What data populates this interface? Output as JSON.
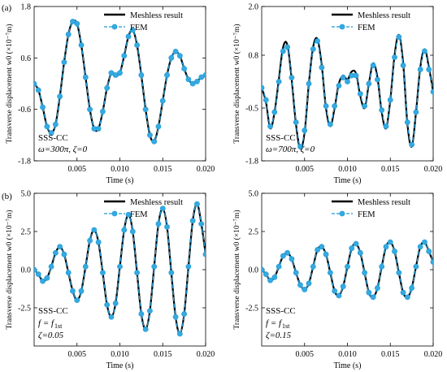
{
  "labels": {
    "row_a": "(a)",
    "row_b": "(b)"
  },
  "colors": {
    "meshless": "#000000",
    "fem": "#1f9bd7",
    "marker_fill": "#35a9e0"
  },
  "chart_data": [
    {
      "type": "line",
      "panel": "top-left",
      "xlabel": "Time (s)",
      "ylabel": "Transverse displacement w0 (×10⁻⁷m)",
      "xlim": [
        0,
        0.02
      ],
      "ylim": [
        -1.8,
        1.8
      ],
      "xticks": [
        0.005,
        0.01,
        0.015,
        0.02
      ],
      "xtick_labels": [
        "0.005",
        "0.010",
        "0.015",
        "0.020"
      ],
      "yticks": [
        -1.8,
        -0.6,
        0.6,
        1.8
      ],
      "ytick_labels": [
        "-1.8",
        "-0.6",
        "0.6",
        "1.8"
      ],
      "legend": {
        "position": "top-right",
        "entries": [
          "Meshless result",
          "FEM"
        ]
      },
      "annotations": [
        "SSS-CC",
        "ω=300π, ζ=0"
      ],
      "series": [
        {
          "name": "Meshless result",
          "style": "solid",
          "x": [
            0,
            0.0005,
            0.001,
            0.0015,
            0.002,
            0.0025,
            0.003,
            0.0035,
            0.004,
            0.0045,
            0.005,
            0.0055,
            0.006,
            0.0065,
            0.007,
            0.0075,
            0.008,
            0.0085,
            0.009,
            0.0095,
            0.01,
            0.0105,
            0.011,
            0.0115,
            0.012,
            0.0125,
            0.013,
            0.0135,
            0.014,
            0.0145,
            0.015,
            0.0155,
            0.016,
            0.0165,
            0.017,
            0.0175,
            0.018,
            0.0185,
            0.019,
            0.0195,
            0.02
          ],
          "y": [
            0.0,
            -0.15,
            -0.55,
            -1.0,
            -1.15,
            -0.95,
            -0.3,
            0.5,
            1.15,
            1.45,
            1.4,
            0.9,
            0.15,
            -0.6,
            -1.05,
            -1.05,
            -0.65,
            -0.1,
            0.25,
            0.2,
            0.25,
            0.65,
            1.1,
            1.25,
            0.9,
            0.2,
            -0.6,
            -1.2,
            -1.35,
            -1.0,
            -0.4,
            0.2,
            0.6,
            0.75,
            0.65,
            0.35,
            0.1,
            0.0,
            0.05,
            0.15,
            0.2
          ]
        },
        {
          "name": "FEM",
          "style": "dashed-markers",
          "x": [
            0,
            0.0005,
            0.001,
            0.0015,
            0.002,
            0.0025,
            0.003,
            0.0035,
            0.004,
            0.0045,
            0.005,
            0.0055,
            0.006,
            0.0065,
            0.007,
            0.0075,
            0.008,
            0.0085,
            0.009,
            0.0095,
            0.01,
            0.0105,
            0.011,
            0.0115,
            0.012,
            0.0125,
            0.013,
            0.0135,
            0.014,
            0.0145,
            0.015,
            0.0155,
            0.016,
            0.0165,
            0.017,
            0.0175,
            0.018,
            0.0185,
            0.019,
            0.0195,
            0.02
          ],
          "y": [
            0.0,
            -0.15,
            -0.55,
            -1.0,
            -1.15,
            -0.95,
            -0.3,
            0.5,
            1.15,
            1.45,
            1.4,
            0.9,
            0.15,
            -0.6,
            -1.05,
            -1.05,
            -0.65,
            -0.1,
            0.25,
            0.2,
            0.25,
            0.65,
            1.1,
            1.25,
            0.9,
            0.2,
            -0.6,
            -1.2,
            -1.35,
            -1.0,
            -0.4,
            0.2,
            0.6,
            0.75,
            0.65,
            0.35,
            0.1,
            0.0,
            0.05,
            0.15,
            0.2
          ]
        }
      ]
    },
    {
      "type": "line",
      "panel": "top-right",
      "xlabel": "Time (s)",
      "ylabel": "Transverse displacement w0 (×10⁻⁷m)",
      "xlim": [
        0,
        0.02
      ],
      "ylim": [
        -1.8,
        2.0
      ],
      "xticks": [
        0.005,
        0.01,
        0.015,
        0.02
      ],
      "xtick_labels": [
        "0.005",
        "0.010",
        "0.015",
        "0.020"
      ],
      "yticks": [
        -1.8,
        -0.5,
        0.8,
        2.0
      ],
      "ytick_labels": [
        "-1.8",
        "-0.5",
        "0.8",
        "2.0"
      ],
      "legend": {
        "position": "top-right",
        "entries": [
          "Meshless result",
          "FEM"
        ]
      },
      "annotations": [
        "SSS-CC",
        "ω=700π, ζ=0"
      ],
      "series": [
        {
          "name": "Meshless result",
          "style": "solid",
          "x": [
            0,
            0.0005,
            0.001,
            0.0015,
            0.002,
            0.0025,
            0.003,
            0.0035,
            0.004,
            0.0045,
            0.005,
            0.0055,
            0.006,
            0.0065,
            0.007,
            0.0075,
            0.008,
            0.0085,
            0.009,
            0.0095,
            0.01,
            0.0105,
            0.011,
            0.0115,
            0.012,
            0.0125,
            0.013,
            0.0135,
            0.014,
            0.0145,
            0.015,
            0.0155,
            0.016,
            0.0165,
            0.017,
            0.0175,
            0.018,
            0.0185,
            0.019,
            0.0195,
            0.02
          ],
          "y": [
            0.0,
            -0.35,
            -1.0,
            -0.6,
            0.2,
            1.0,
            1.05,
            0.2,
            -0.9,
            -1.5,
            -1.1,
            0.1,
            1.0,
            1.2,
            0.55,
            -0.5,
            -0.95,
            -0.5,
            0.1,
            0.3,
            0.2,
            0.4,
            0.35,
            -0.2,
            -0.5,
            0.1,
            0.6,
            0.25,
            -0.6,
            -1.0,
            -0.3,
            0.8,
            1.3,
            0.6,
            -0.9,
            -1.45,
            -0.6,
            0.5,
            0.95,
            0.5,
            -0.1
          ]
        },
        {
          "name": "FEM",
          "style": "dashed-markers",
          "x": [
            0,
            0.0005,
            0.001,
            0.0015,
            0.002,
            0.0025,
            0.003,
            0.0035,
            0.004,
            0.0045,
            0.005,
            0.0055,
            0.006,
            0.0065,
            0.007,
            0.0075,
            0.008,
            0.0085,
            0.009,
            0.0095,
            0.01,
            0.0105,
            0.011,
            0.0115,
            0.012,
            0.0125,
            0.013,
            0.0135,
            0.014,
            0.0145,
            0.015,
            0.0155,
            0.016,
            0.0165,
            0.017,
            0.0175,
            0.018,
            0.0185,
            0.019,
            0.0195,
            0.02
          ],
          "y": [
            0.0,
            -0.3,
            -0.95,
            -0.6,
            0.15,
            0.9,
            1.0,
            0.25,
            -0.85,
            -1.45,
            -1.05,
            0.1,
            0.95,
            1.15,
            0.5,
            -0.45,
            -0.9,
            -0.45,
            0.05,
            0.25,
            0.15,
            0.3,
            0.3,
            -0.15,
            -0.45,
            0.1,
            0.55,
            0.2,
            -0.55,
            -0.95,
            -0.3,
            0.75,
            1.25,
            0.55,
            -0.85,
            -1.4,
            -0.6,
            0.45,
            0.9,
            0.45,
            -0.1
          ]
        }
      ]
    },
    {
      "type": "line",
      "panel": "bottom-left",
      "xlabel": "Time (s)",
      "ylabel": "Transverse displacement w0 (×10⁻⁷m)",
      "xlim": [
        0,
        0.02
      ],
      "ylim": [
        -5.0,
        5.0
      ],
      "xticks": [
        0.005,
        0.01,
        0.015,
        0.02
      ],
      "xtick_labels": [
        "0.005",
        "0.010",
        "0.015",
        "0.020"
      ],
      "yticks": [
        -2.5,
        0.0,
        2.5,
        5.0
      ],
      "ytick_labels": [
        "-2.5",
        "0.0",
        "2.5",
        "5.0"
      ],
      "legend": {
        "position": "top-right",
        "entries": [
          "Meshless result",
          "FEM"
        ]
      },
      "annotations": [
        "SSS-CC",
        "f = f",
        "1st",
        "ζ=0.05"
      ],
      "series": [
        {
          "name": "Meshless result",
          "style": "solid",
          "x": [
            0,
            0.0005,
            0.001,
            0.0015,
            0.002,
            0.0025,
            0.003,
            0.0035,
            0.004,
            0.0045,
            0.005,
            0.0055,
            0.006,
            0.0065,
            0.007,
            0.0075,
            0.008,
            0.0085,
            0.009,
            0.0095,
            0.01,
            0.0105,
            0.011,
            0.0115,
            0.012,
            0.0125,
            0.013,
            0.0135,
            0.014,
            0.0145,
            0.015,
            0.0155,
            0.016,
            0.0165,
            0.017,
            0.0175,
            0.018,
            0.0185,
            0.019,
            0.0195,
            0.02
          ],
          "y": [
            0.0,
            -0.3,
            -0.75,
            -0.55,
            0.2,
            1.1,
            1.5,
            1.0,
            -0.2,
            -1.4,
            -2.0,
            -1.4,
            0.2,
            1.9,
            2.6,
            1.8,
            -0.2,
            -2.3,
            -3.1,
            -2.2,
            0.2,
            2.6,
            3.6,
            2.5,
            -0.2,
            -2.9,
            -3.9,
            -2.7,
            0.2,
            3.0,
            4.0,
            2.8,
            -0.2,
            -3.1,
            -4.2,
            -2.9,
            0.2,
            3.2,
            4.3,
            3.0,
            1.0
          ]
        },
        {
          "name": "FEM",
          "style": "dashed-markers",
          "x": [
            0,
            0.0005,
            0.001,
            0.0015,
            0.002,
            0.0025,
            0.003,
            0.0035,
            0.004,
            0.0045,
            0.005,
            0.0055,
            0.006,
            0.0065,
            0.007,
            0.0075,
            0.008,
            0.0085,
            0.009,
            0.0095,
            0.01,
            0.0105,
            0.011,
            0.0115,
            0.012,
            0.0125,
            0.013,
            0.0135,
            0.014,
            0.0145,
            0.015,
            0.0155,
            0.016,
            0.0165,
            0.017,
            0.0175,
            0.018,
            0.0185,
            0.019,
            0.0195,
            0.02
          ],
          "y": [
            0.0,
            -0.3,
            -0.75,
            -0.55,
            0.2,
            1.1,
            1.5,
            1.0,
            -0.2,
            -1.4,
            -2.0,
            -1.4,
            0.2,
            1.9,
            2.6,
            1.8,
            -0.2,
            -2.3,
            -3.1,
            -2.2,
            0.2,
            2.6,
            3.6,
            2.5,
            -0.2,
            -2.9,
            -3.9,
            -2.7,
            0.2,
            3.0,
            4.0,
            2.8,
            -0.2,
            -3.1,
            -4.2,
            -2.9,
            0.2,
            3.2,
            4.3,
            3.0,
            1.0
          ]
        }
      ]
    },
    {
      "type": "line",
      "panel": "bottom-right",
      "xlabel": "Time (s)",
      "ylabel": "Transverse displacement w0 (×10⁻⁷m)",
      "xlim": [
        0,
        0.02
      ],
      "ylim": [
        -5.0,
        5.0
      ],
      "xticks": [
        0.005,
        0.01,
        0.015,
        0.02
      ],
      "xtick_labels": [
        "0.005",
        "0.010",
        "0.015",
        "0.020"
      ],
      "yticks": [
        -2.5,
        0.0,
        2.5,
        5.0
      ],
      "ytick_labels": [
        "-2.5",
        "0.0",
        "2.5",
        "5.0"
      ],
      "legend": {
        "position": "top-right",
        "entries": [
          "Meshless result",
          "FEM"
        ]
      },
      "annotations": [
        "SSS-CC",
        "f = f",
        "1st",
        "ζ=0.15"
      ],
      "series": [
        {
          "name": "Meshless result",
          "style": "solid",
          "x": [
            0,
            0.0005,
            0.001,
            0.0015,
            0.002,
            0.0025,
            0.003,
            0.0035,
            0.004,
            0.0045,
            0.005,
            0.0055,
            0.006,
            0.0065,
            0.007,
            0.0075,
            0.008,
            0.0085,
            0.009,
            0.0095,
            0.01,
            0.0105,
            0.011,
            0.0115,
            0.012,
            0.0125,
            0.013,
            0.0135,
            0.014,
            0.0145,
            0.015,
            0.0155,
            0.016,
            0.0165,
            0.017,
            0.0175,
            0.018,
            0.0185,
            0.019,
            0.0195,
            0.02
          ],
          "y": [
            0.0,
            -0.3,
            -0.7,
            -0.5,
            0.2,
            0.9,
            1.1,
            0.7,
            -0.2,
            -1.0,
            -1.3,
            -0.9,
            0.2,
            1.3,
            1.5,
            1.0,
            -0.2,
            -1.4,
            -1.7,
            -1.1,
            0.2,
            1.4,
            1.7,
            1.1,
            -0.2,
            -1.5,
            -1.8,
            -1.2,
            0.2,
            1.5,
            1.8,
            1.2,
            -0.2,
            -1.5,
            -1.8,
            -1.2,
            0.2,
            1.5,
            1.8,
            1.2,
            0.5
          ]
        },
        {
          "name": "FEM",
          "style": "dashed-markers",
          "x": [
            0,
            0.0005,
            0.001,
            0.0015,
            0.002,
            0.0025,
            0.003,
            0.0035,
            0.004,
            0.0045,
            0.005,
            0.0055,
            0.006,
            0.0065,
            0.007,
            0.0075,
            0.008,
            0.0085,
            0.009,
            0.0095,
            0.01,
            0.0105,
            0.011,
            0.0115,
            0.012,
            0.0125,
            0.013,
            0.0135,
            0.014,
            0.0145,
            0.015,
            0.0155,
            0.016,
            0.0165,
            0.017,
            0.0175,
            0.018,
            0.0185,
            0.019,
            0.0195,
            0.02
          ],
          "y": [
            0.0,
            -0.3,
            -0.7,
            -0.5,
            0.2,
            0.9,
            1.1,
            0.7,
            -0.2,
            -1.0,
            -1.3,
            -0.9,
            0.2,
            1.3,
            1.5,
            1.0,
            -0.2,
            -1.4,
            -1.7,
            -1.1,
            0.2,
            1.4,
            1.7,
            1.1,
            -0.2,
            -1.5,
            -1.8,
            -1.2,
            0.2,
            1.5,
            1.8,
            1.2,
            -0.2,
            -1.5,
            -1.8,
            -1.2,
            0.2,
            1.5,
            1.8,
            1.2,
            0.5
          ]
        }
      ]
    }
  ]
}
